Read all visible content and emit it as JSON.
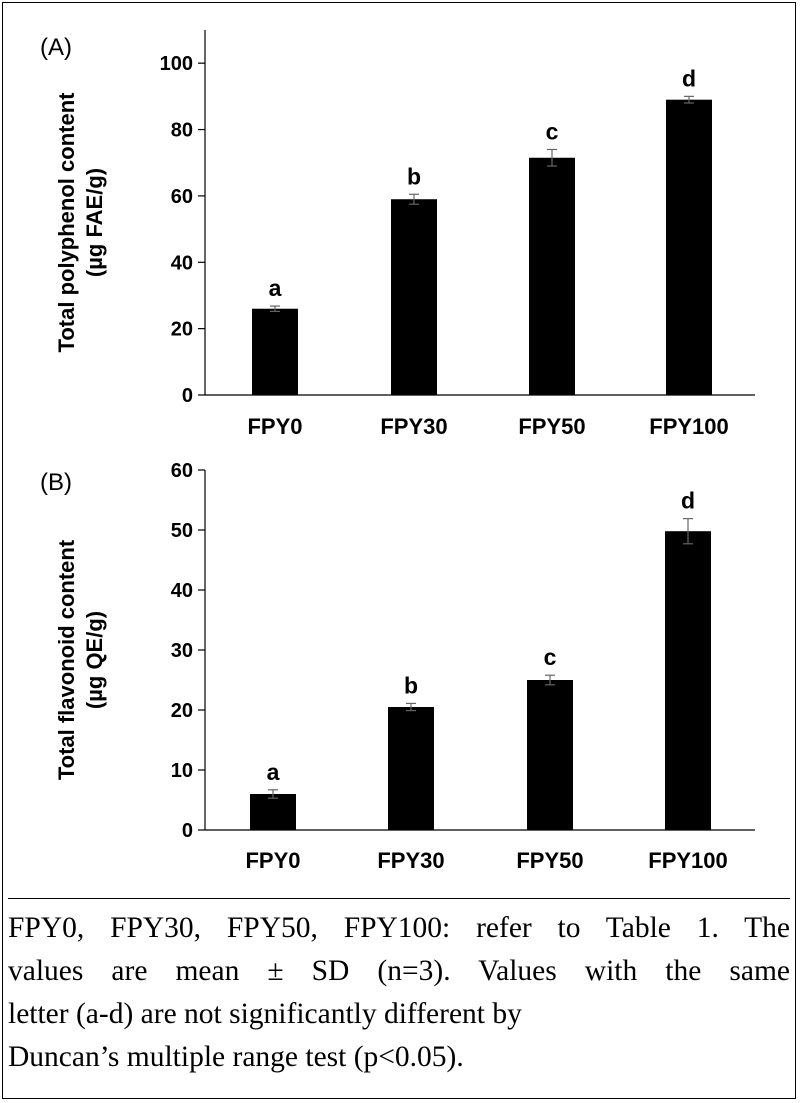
{
  "chart_data": [
    {
      "type": "bar",
      "panel_label": "(A)",
      "categories": [
        "FPY0",
        "FPY30",
        "FPY50",
        "FPY100"
      ],
      "values": [
        26,
        59,
        71.5,
        89
      ],
      "errors": [
        0.8,
        1.5,
        2.5,
        1.0
      ],
      "letters": [
        "a",
        "b",
        "c",
        "d"
      ],
      "ylabel_lines": [
        "Total polyphenol content",
        "(µg FAE/g)"
      ],
      "xlabel": "",
      "ylim": [
        0,
        110
      ],
      "yticks": [
        0,
        20,
        40,
        60,
        80,
        100
      ],
      "grid": false,
      "bar_color": "#000000"
    },
    {
      "type": "bar",
      "panel_label": "(B)",
      "categories": [
        "FPY0",
        "FPY30",
        "FPY50",
        "FPY100"
      ],
      "values": [
        6,
        20.5,
        25,
        49.8
      ],
      "errors": [
        0.7,
        0.6,
        0.8,
        2.1
      ],
      "letters": [
        "a",
        "b",
        "c",
        "d"
      ],
      "ylabel_lines": [
        "Total flavonoid content",
        "(µg QE/g)"
      ],
      "xlabel": "",
      "ylim": [
        0,
        60
      ],
      "yticks": [
        0,
        10,
        20,
        30,
        40,
        50,
        60
      ],
      "grid": false,
      "bar_color": "#000000"
    }
  ],
  "caption": {
    "line1": "FPY0, FPY30, FPY50, FPY100: refer to Table 1. The",
    "line2": "values are mean ± SD (n=3). Values with the same",
    "line3": "letter (a-d) are not significantly different by",
    "line4": "Duncan’s multiple range test (p<0.05)."
  }
}
